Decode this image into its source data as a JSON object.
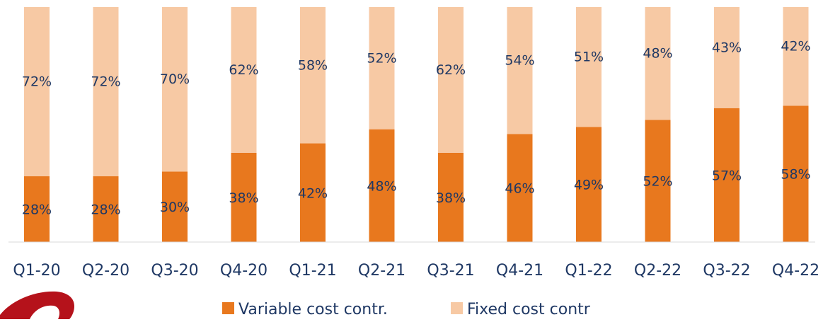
{
  "chart_data": {
    "type": "bar",
    "stacked": true,
    "percent": true,
    "title": "",
    "xlabel": "",
    "ylabel": "",
    "ylim": [
      0,
      100
    ],
    "grid": false,
    "legend_position": "bottom",
    "categories": [
      "Q1-20",
      "Q2-20",
      "Q3-20",
      "Q4-20",
      "Q1-21",
      "Q2-21",
      "Q3-21",
      "Q4-21",
      "Q1-22",
      "Q2-22",
      "Q3-22",
      "Q4-22"
    ],
    "series": [
      {
        "name": "Variable cost contr.",
        "color": "#e8781e",
        "values": [
          28,
          28,
          30,
          38,
          42,
          48,
          38,
          46,
          49,
          52,
          57,
          58
        ],
        "labels": [
          "28%",
          "28%",
          "30%",
          "38%",
          "42%",
          "48%",
          "38%",
          "46%",
          "49%",
          "52%",
          "57%",
          "58%"
        ]
      },
      {
        "name": "Fixed cost contr",
        "color": "#f7c9a4",
        "values": [
          72,
          72,
          70,
          62,
          58,
          52,
          62,
          54,
          51,
          48,
          43,
          42
        ],
        "labels": [
          "72%",
          "72%",
          "70%",
          "62%",
          "58%",
          "52%",
          "62%",
          "54%",
          "51%",
          "48%",
          "43%",
          "42%"
        ]
      }
    ]
  },
  "logo": {
    "icon": "company-logo-icon",
    "color": "#b5121b"
  }
}
